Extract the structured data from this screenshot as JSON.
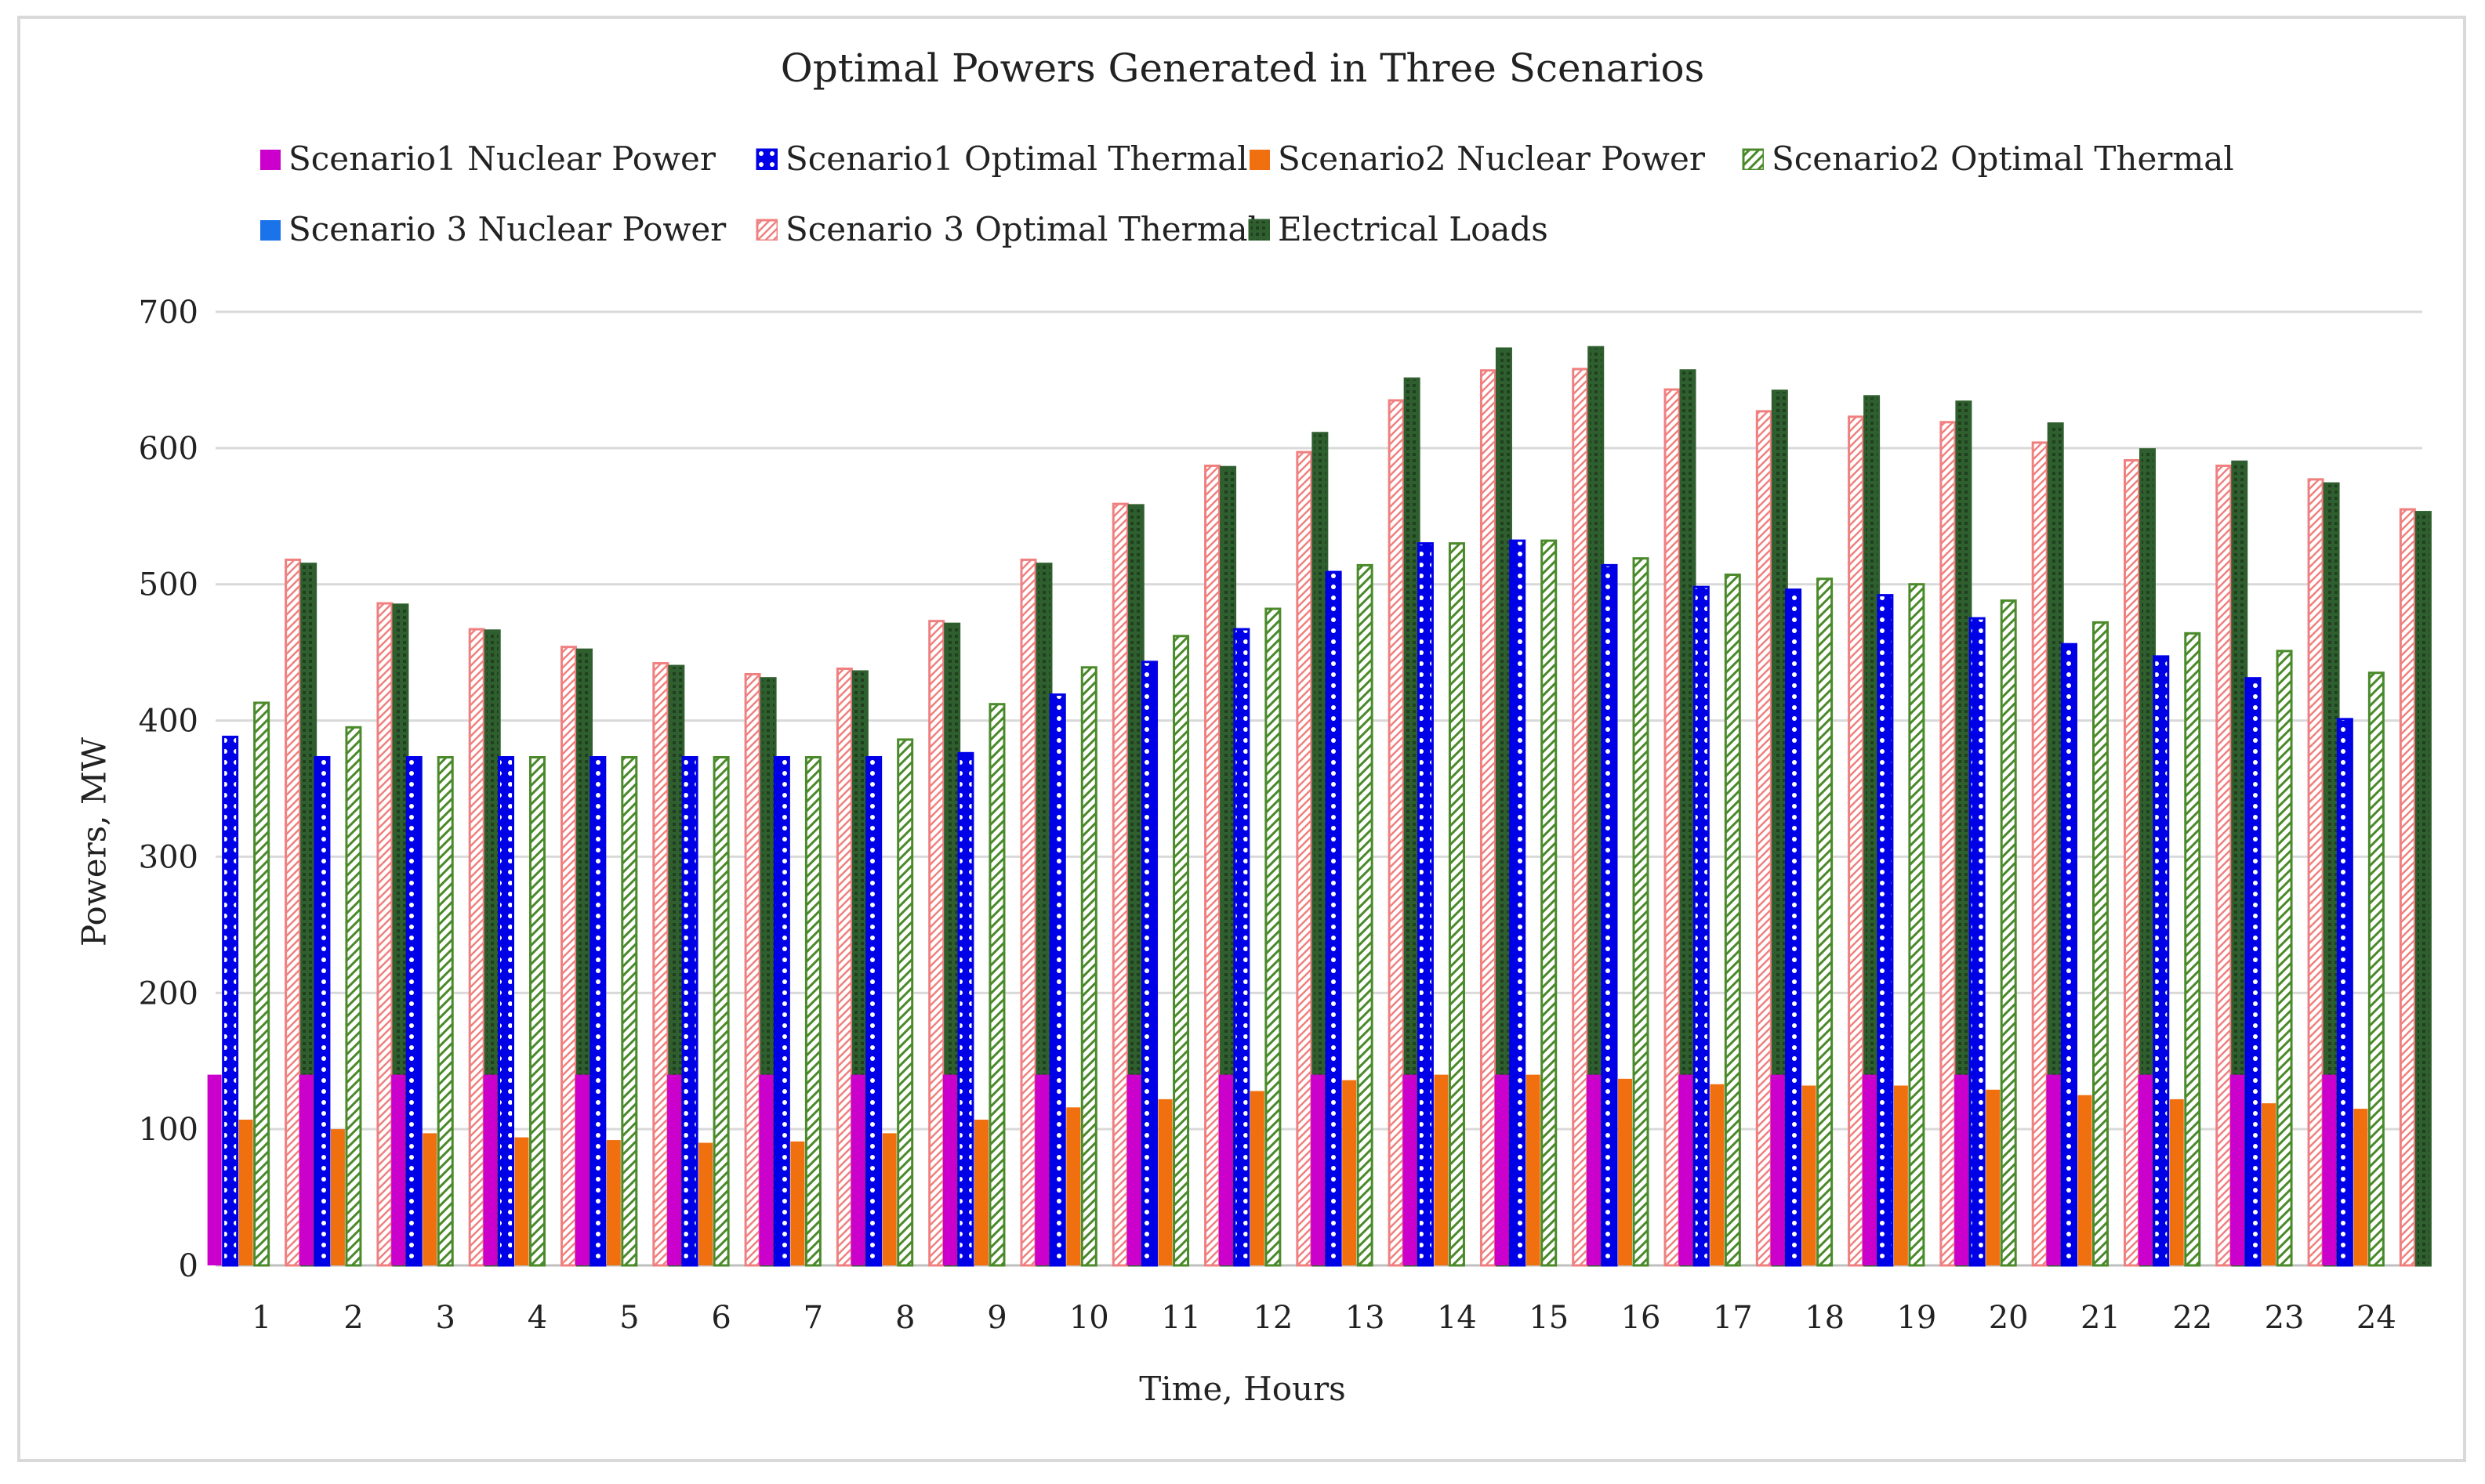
{
  "chart_data": {
    "type": "bar",
    "title": "Optimal Powers Generated in Three Scenarios",
    "xlabel": "Time, Hours",
    "ylabel": "Powers, MW",
    "ylim": [
      0,
      700
    ],
    "yticks": [
      0,
      100,
      200,
      300,
      400,
      500,
      600,
      700
    ],
    "grid": true,
    "legend_position": "top",
    "categories": [
      "1",
      "2",
      "3",
      "4",
      "5",
      "6",
      "7",
      "8",
      "9",
      "10",
      "11",
      "12",
      "13",
      "14",
      "15",
      "16",
      "17",
      "18",
      "19",
      "20",
      "21",
      "22",
      "23",
      "24"
    ],
    "series": [
      {
        "name": "Scenario1 Nuclear Power",
        "color": "#cc00cc",
        "pattern": "solid",
        "values": [
          140,
          140,
          140,
          140,
          140,
          140,
          140,
          140,
          140,
          140,
          140,
          140,
          140,
          140,
          140,
          140,
          140,
          140,
          140,
          140,
          140,
          140,
          140,
          140
        ]
      },
      {
        "name": "Scenario1 Optimal Thermal",
        "color": "#0000e6",
        "pattern": "dots",
        "values": [
          388,
          373,
          373,
          373,
          373,
          373,
          373,
          373,
          376,
          419,
          443,
          467,
          509,
          530,
          532,
          514,
          498,
          496,
          492,
          475,
          456,
          447,
          431,
          401
        ]
      },
      {
        "name": "Scenario2 Nuclear Power",
        "color": "#f07010",
        "pattern": "solid",
        "values": [
          107,
          100,
          97,
          94,
          92,
          90,
          91,
          97,
          107,
          116,
          122,
          128,
          136,
          140,
          140,
          137,
          133,
          132,
          132,
          129,
          125,
          122,
          119,
          115
        ]
      },
      {
        "name": "Scenario2 Optimal Thermal",
        "color": "#4a8a2a",
        "pattern": "diagonal",
        "values": [
          413,
          395,
          373,
          373,
          373,
          373,
          373,
          386,
          412,
          439,
          462,
          482,
          514,
          530,
          532,
          519,
          507,
          504,
          500,
          488,
          472,
          464,
          451,
          435
        ]
      },
      {
        "name": "Scenario 3 Nuclear Power",
        "color": "#1a73e8",
        "pattern": "solid",
        "values": [
          0,
          0,
          0,
          0,
          0,
          0,
          0,
          0,
          0,
          0,
          0,
          0,
          0,
          0,
          0,
          0,
          0,
          0,
          0,
          0,
          0,
          0,
          0,
          0
        ]
      },
      {
        "name": "Scenario 3 Optimal Thermal",
        "color": "#f08080",
        "pattern": "hatch",
        "values": [
          518,
          486,
          467,
          454,
          442,
          434,
          438,
          473,
          518,
          559,
          587,
          597,
          635,
          657,
          658,
          643,
          627,
          623,
          619,
          604,
          591,
          587,
          577,
          555
        ]
      },
      {
        "name": "Electrical Loads",
        "color": "#2f5f2f",
        "pattern": "bordered",
        "values": [
          515,
          485,
          466,
          452,
          440,
          431,
          436,
          471,
          515,
          558,
          586,
          611,
          651,
          673,
          674,
          657,
          642,
          638,
          634,
          618,
          599,
          590,
          574,
          553
        ]
      }
    ]
  }
}
